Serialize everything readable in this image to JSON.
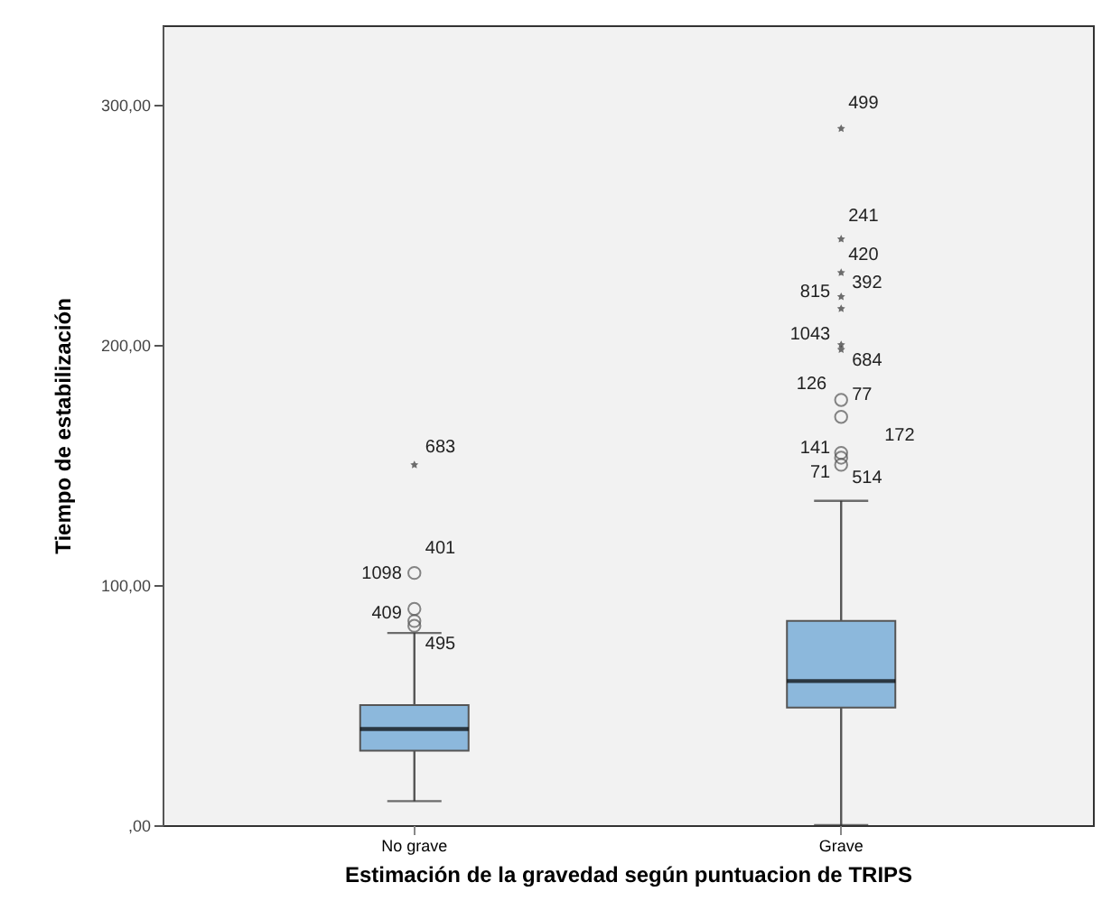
{
  "chart_data": {
    "type": "box",
    "xlabel": "Estimación de la gravedad según puntuacion de TRIPS",
    "ylabel": "Tiempo de estabilización",
    "categories": [
      "No grave",
      "Grave"
    ],
    "ylim": [
      0,
      333
    ],
    "yticks": [
      {
        "value": 0,
        "label": ",00"
      },
      {
        "value": 100,
        "label": "100,00"
      },
      {
        "value": 200,
        "label": "200,00"
      },
      {
        "value": 300,
        "label": "300,00"
      }
    ],
    "series": [
      {
        "color": "#8cb8dc",
        "boxes": [
          {
            "low": 10,
            "q1": 31,
            "median": 40,
            "q3": 50,
            "high": 80,
            "outliers": [
              150,
              105,
              90,
              85,
              83
            ]
          },
          {
            "low": 0,
            "q1": 49,
            "median": 60,
            "q3": 85,
            "high": 135,
            "outliers": [
              290,
              244,
              230,
              220,
              215,
              200,
              198,
              177,
              170,
              155,
              153,
              150
            ]
          }
        ]
      }
    ],
    "annotations": [
      "683",
      "401",
      "1098",
      "409",
      "495",
      "499",
      "241",
      "420",
      "392",
      "815",
      "1043",
      "684",
      "126",
      "77",
      "172",
      "141",
      "71",
      "514"
    ]
  }
}
